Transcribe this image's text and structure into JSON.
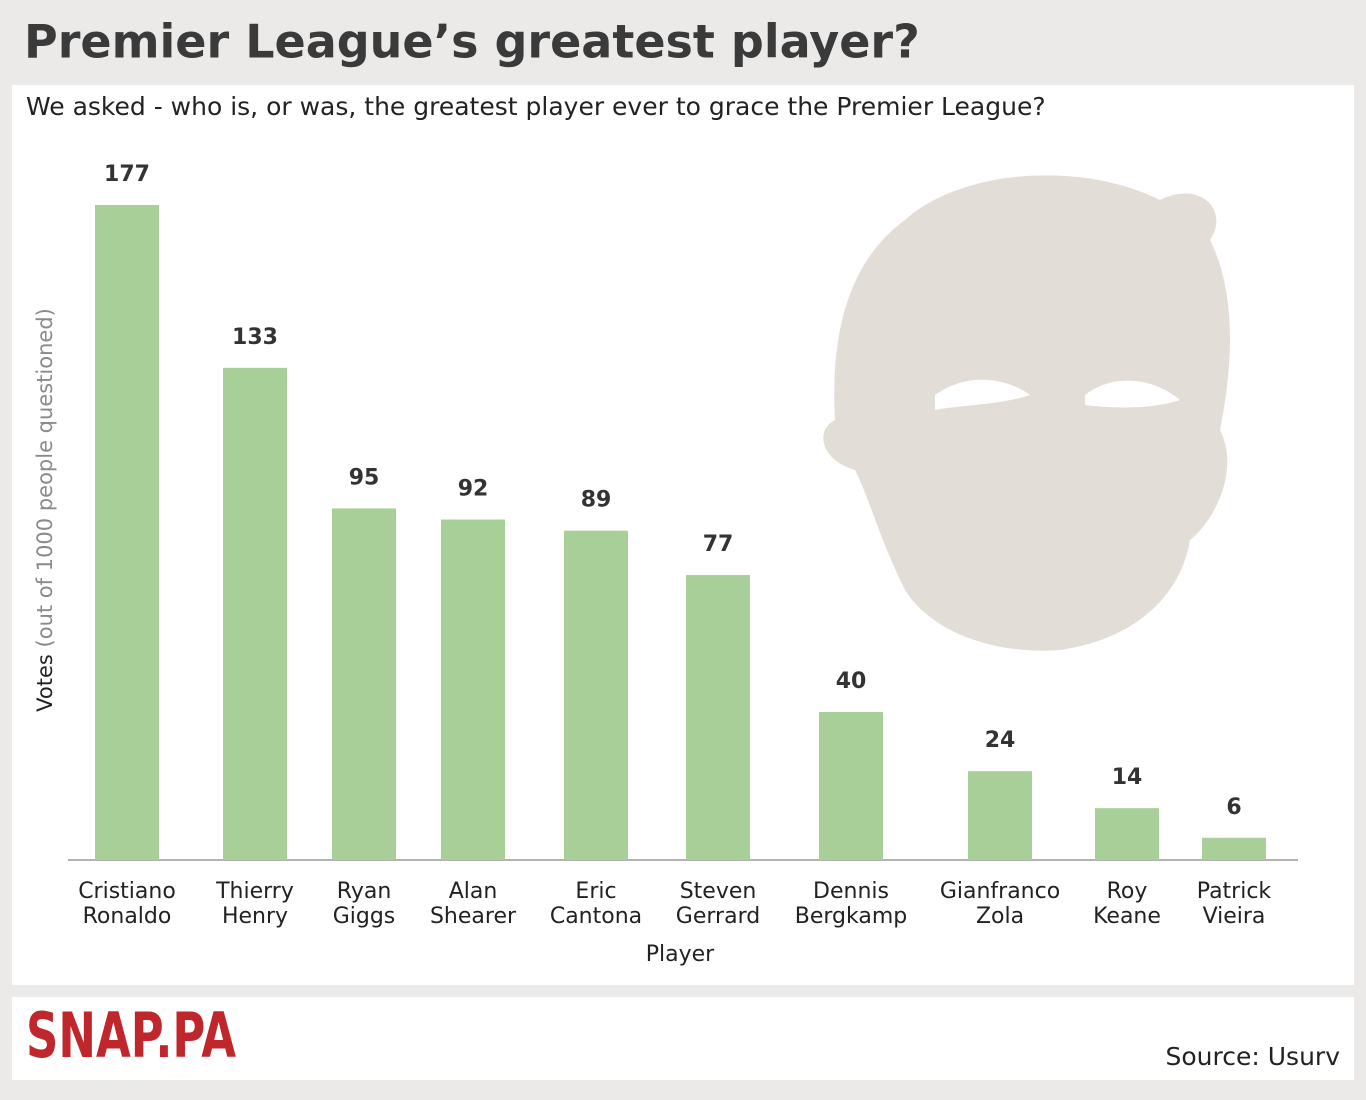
{
  "chart_data": {
    "type": "bar",
    "title": "Premier League’s greatest player?",
    "subtitle": "We asked - who is, or was, the greatest player ever to grace the Premier League?",
    "y_label": "Votes",
    "y_label_note": "(out of 1000 people questioned)",
    "x_label": "Player",
    "categories": [
      "Cristiano Ronaldo",
      "Thierry Henry",
      "Ryan Giggs",
      "Alan Shearer",
      "Eric Cantona",
      "Steven Gerrard",
      "Dennis Bergkamp",
      "Gianfranco Zola",
      "Roy Keane",
      "Patrick Vieira"
    ],
    "values": [
      177,
      133,
      95,
      92,
      89,
      77,
      40,
      24,
      14,
      6
    ],
    "color": "#a8cf98"
  },
  "footer": {
    "logo": "SNAP.PA",
    "source": "Source: Usurv"
  }
}
